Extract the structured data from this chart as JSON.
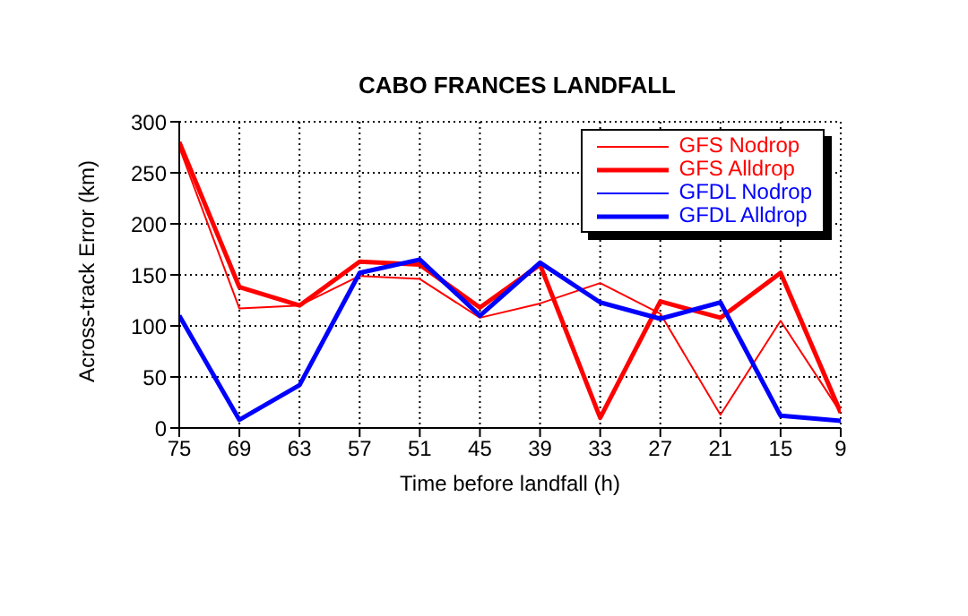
{
  "chart_data": {
    "type": "line",
    "title": "CABO FRANCES LANDFALL",
    "xlabel": "Time before landfall (h)",
    "ylabel": "Across-track Error (km)",
    "x": [
      75,
      69,
      63,
      57,
      51,
      45,
      39,
      33,
      27,
      21,
      15,
      9
    ],
    "xlim": [
      75,
      9
    ],
    "xticks": [
      75,
      69,
      63,
      57,
      51,
      45,
      39,
      33,
      27,
      21,
      15,
      9
    ],
    "ylim": [
      0,
      300
    ],
    "yticks": [
      0,
      50,
      100,
      150,
      200,
      250,
      300
    ],
    "grid": true,
    "legend": "top right",
    "marker": "none",
    "series": [
      {
        "name": "GFS Nodrop",
        "color": "#ff0000",
        "values": [
          275,
          117,
          120,
          149,
          146,
          108,
          122,
          142,
          112,
          13,
          105,
          15
        ]
      },
      {
        "name": "GFS Alldrop",
        "color": "#ff0000",
        "values": [
          280,
          138,
          120,
          163,
          160,
          118,
          160,
          10,
          124,
          108,
          152,
          15
        ]
      },
      {
        "name": "GFDL Nodrop",
        "color": "#0000ff",
        "values": [
          null,
          null,
          null,
          null,
          null,
          null,
          null,
          null,
          null,
          null,
          null,
          null
        ]
      },
      {
        "name": "GFDL Alldrop",
        "color": "#0000ff",
        "values": [
          110,
          8,
          42,
          152,
          165,
          110,
          162,
          123,
          107,
          123,
          12,
          7
        ]
      }
    ]
  }
}
